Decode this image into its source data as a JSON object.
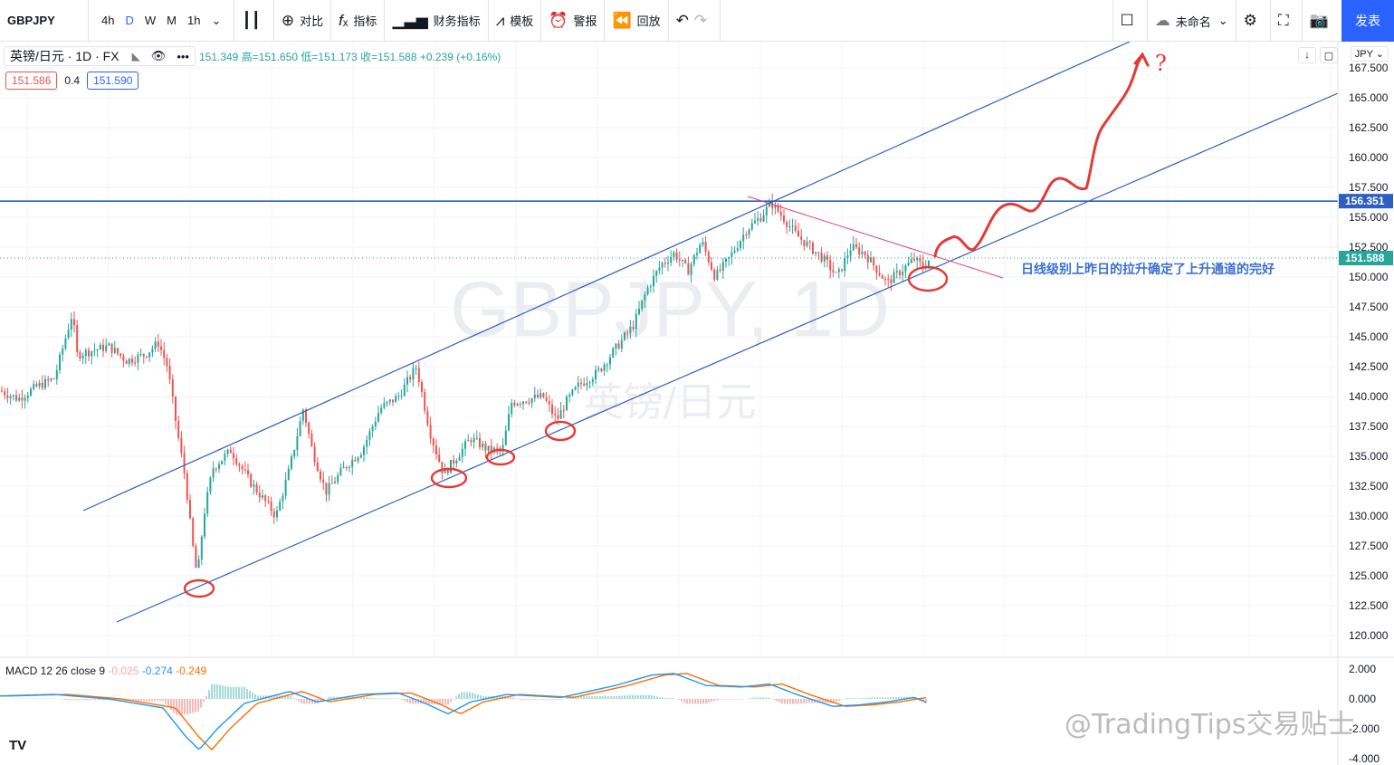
{
  "toolbar": {
    "symbol": "GBPJPY",
    "intervals": [
      "4h",
      "D",
      "W",
      "M",
      "1h"
    ],
    "active_interval": "D",
    "compare_label": "对比",
    "indicators_label": "指标",
    "financials_label": "财务指标",
    "templates_label": "模板",
    "alert_label": "警报",
    "replay_label": "回放",
    "layout_name": "未命名",
    "publish_label": "发表"
  },
  "legend": {
    "title": "英镑/日元 · 1D · FX",
    "ohlc": "151.349  高=151.650  低=151.173  收=151.588  +0.239 (+0.16%)",
    "bid": "151.586",
    "spread": "0.4",
    "ask": "151.590"
  },
  "watermark": {
    "symbol_text": "GBPJPY, 1D",
    "name_text": "英镑/日元"
  },
  "axis": {
    "currency": "JPY",
    "price_ticks": [
      "167.500",
      "165.000",
      "162.500",
      "160.000",
      "157.500",
      "155.000",
      "152.500",
      "150.000",
      "147.500",
      "145.000",
      "142.500",
      "140.000",
      "137.500",
      "135.000",
      "132.500",
      "130.000",
      "127.500",
      "125.000",
      "122.500",
      "120.000"
    ],
    "resistance_label": "156.351",
    "last_price_label": "151.588",
    "macd_ticks": [
      "2.000",
      "0.000",
      "-2.000",
      "-4.000"
    ]
  },
  "macd": {
    "name": "MACD 12 26 close 9",
    "hist": "-0.025",
    "macd": "-0.274",
    "signal": "-0.249"
  },
  "annotation": {
    "text": "日线级别上昨日的拉升确定了上升通道的完好",
    "question": "?"
  },
  "credit": "@TradingTips交易贴士",
  "tv_logo": "TV",
  "colors": {
    "up": "#26a69a",
    "down": "#ef5350",
    "channel": "#2c5fbf",
    "resistance": "#2c5fbf",
    "trendline": "#e0457a",
    "circles": "#e53935",
    "accent": "#2962ff"
  }
}
